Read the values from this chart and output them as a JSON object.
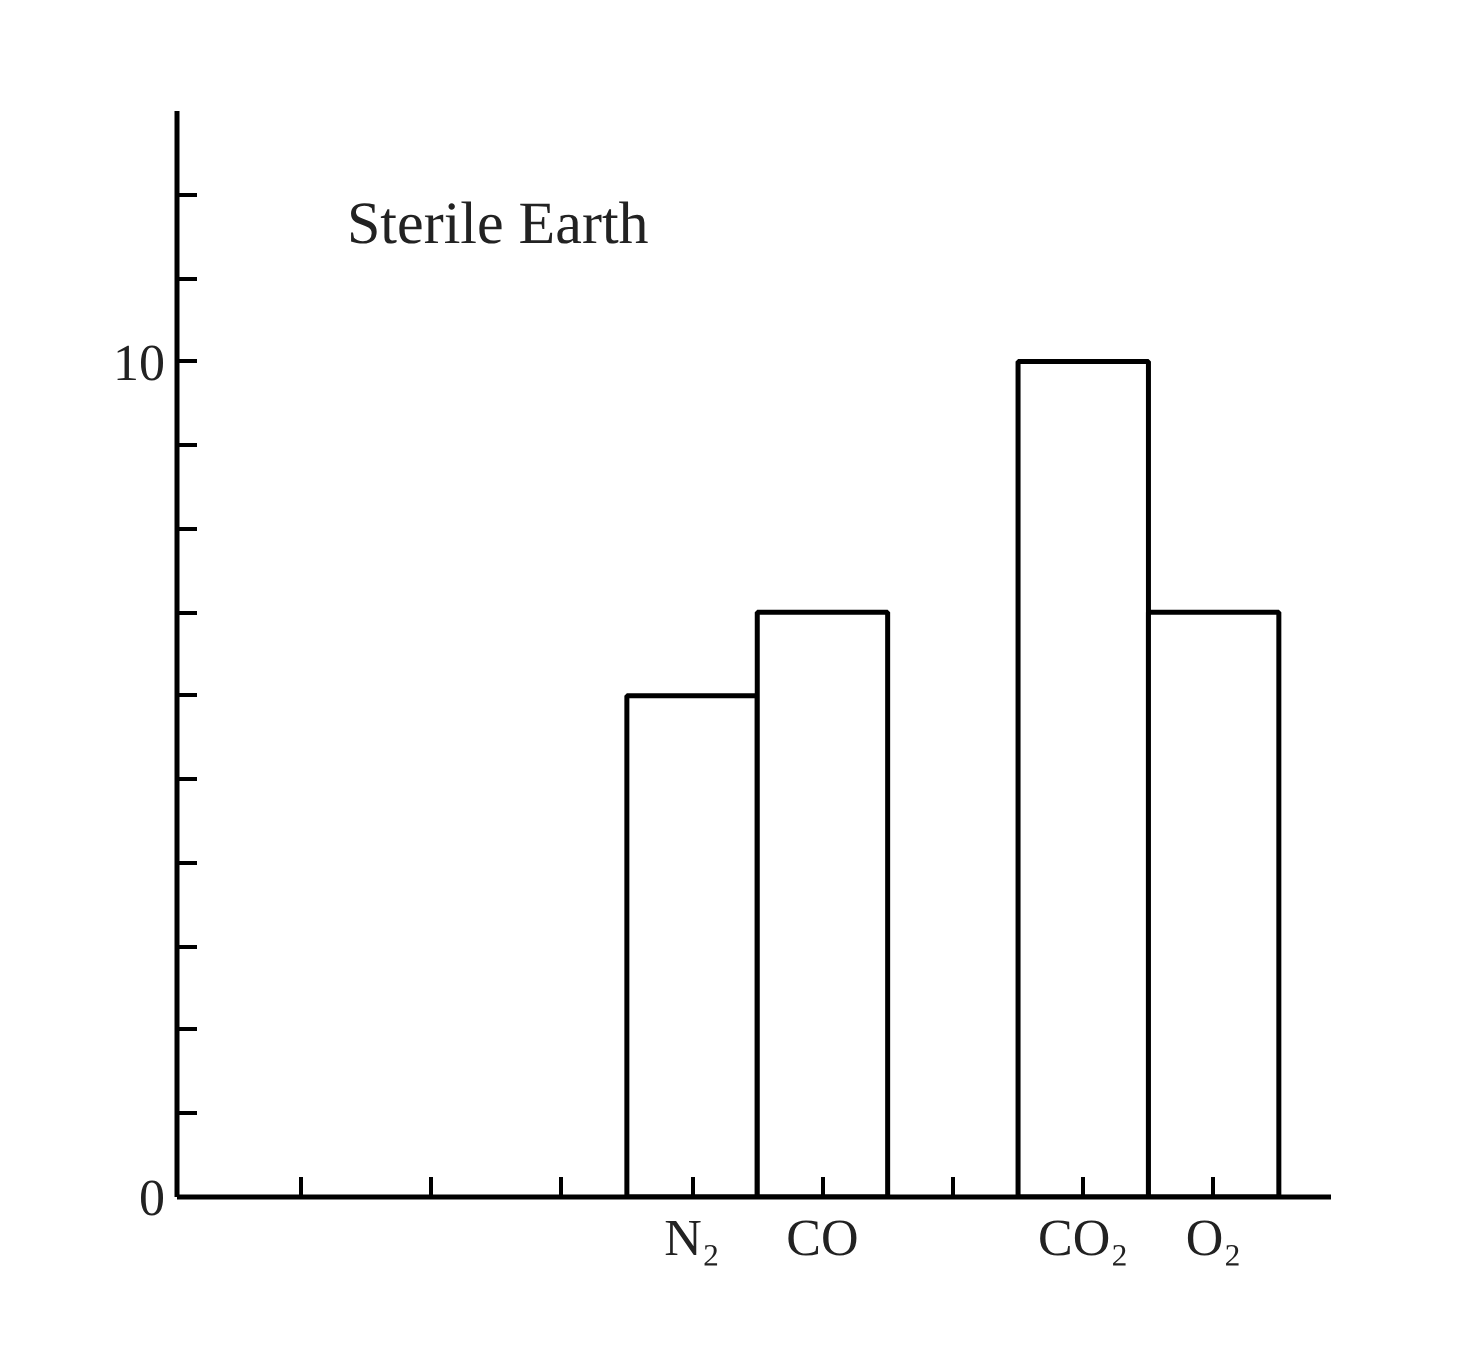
{
  "chart_data": {
    "type": "bar",
    "title": "Sterile Earth",
    "categories": [
      null,
      null,
      null,
      "N₂",
      "CO",
      null,
      "CO₂",
      "O₂"
    ],
    "values": [
      null,
      null,
      null,
      6,
      7,
      null,
      10,
      7
    ],
    "color": "#ffffff",
    "ylim": [
      0,
      13
    ],
    "yticks": [
      0,
      {
        "value": 1,
        "label": null
      },
      {
        "value": 2,
        "label": null
      },
      {
        "value": 3,
        "label": null
      },
      {
        "value": 4,
        "label": null
      },
      {
        "value": 5,
        "label": null
      },
      {
        "value": 6,
        "label": null
      },
      {
        "value": 7,
        "label": null
      },
      {
        "value": 8,
        "label": null
      },
      {
        "value": 9,
        "label": null
      },
      10,
      {
        "value": 11,
        "label": null
      },
      {
        "value": 12,
        "label": null
      }
    ],
    "grid": false
  }
}
